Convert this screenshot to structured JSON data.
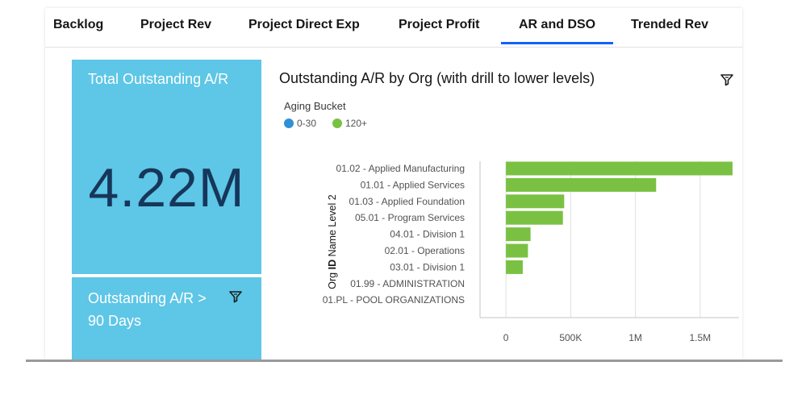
{
  "tabs": [
    {
      "label": "Backlog",
      "active": false
    },
    {
      "label": "Project Rev",
      "active": false
    },
    {
      "label": "Project Direct Exp",
      "active": false
    },
    {
      "label": "Project Profit",
      "active": false
    },
    {
      "label": "AR and DSO",
      "active": true
    },
    {
      "label": "Trended Rev",
      "active": false
    }
  ],
  "kpi_main": {
    "title": "Total Outstanding A/R",
    "value": "4.22M"
  },
  "kpi_secondary": {
    "title": "Outstanding A/R > 90 Days"
  },
  "chart_panel": {
    "icon": "filter-icon"
  },
  "colors": {
    "accent": "#0f62fe",
    "tile": "#5ec6e6",
    "kpi_text": "#16375a",
    "bucket_0_30": "#2f90d8",
    "bucket_120_plus": "#7ac143"
  },
  "chart_data": {
    "type": "bar",
    "orientation": "horizontal",
    "title": "Outstanding A/R by Org (with drill to lower levels)",
    "legend_title": "Aging Bucket",
    "legend": [
      {
        "label": "0-30",
        "color": "#2f90d8"
      },
      {
        "label": "120+",
        "color": "#7ac143"
      }
    ],
    "ylabel": "Org ID Name Level 2",
    "xlabel": "",
    "categories": [
      "01.02 - Applied Manufacturing",
      "01.01 - Applied Services",
      "01.03 - Applied Foundation",
      "05.01 - Program Services",
      "04.01 - Division 1",
      "02.01 - Operations",
      "03.01 - Division 1",
      "01.99 - ADMINISTRATION",
      "01.PL - POOL ORGANIZATIONS"
    ],
    "series": [
      {
        "name": "120+",
        "values": [
          1750000,
          1160000,
          450000,
          440000,
          190000,
          170000,
          130000,
          0,
          0
        ]
      }
    ],
    "xlim": [
      -200000,
      1800000
    ],
    "xticks": [
      0,
      500000,
      1000000,
      1500000
    ],
    "xtick_labels": [
      "0",
      "500K",
      "1M",
      "1.5M"
    ],
    "grid": true
  }
}
